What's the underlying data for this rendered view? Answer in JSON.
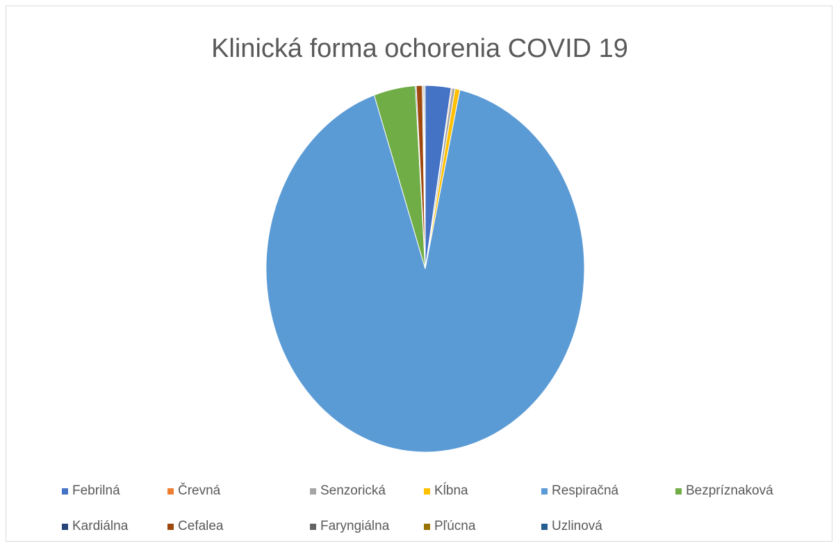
{
  "chart_data": {
    "type": "pie",
    "title": "Klinická forma ochorenia COVID 19",
    "legend_position": "bottom",
    "slices": [
      {
        "label": "Febrilná",
        "value": 2.6,
        "color": "#4472c4"
      },
      {
        "label": "Črevná",
        "value": 0.1,
        "color": "#ed7d31"
      },
      {
        "label": "Senzorická",
        "value": 0.3,
        "color": "#a5a5a5"
      },
      {
        "label": "Kĺbna",
        "value": 0.5,
        "color": "#ffc000"
      },
      {
        "label": "Respiračná",
        "value": 91.3,
        "color": "#5b9bd5"
      },
      {
        "label": "Bezpríznaková",
        "value": 4.2,
        "color": "#70ad47"
      },
      {
        "label": "Kardiálna",
        "value": 0.1,
        "color": "#264478"
      },
      {
        "label": "Cefalea",
        "value": 0.6,
        "color": "#9e480e"
      },
      {
        "label": "Faryngiálna",
        "value": 0.1,
        "color": "#636363"
      },
      {
        "label": "Pľúcna",
        "value": 0.1,
        "color": "#997300"
      },
      {
        "label": "Uzlinová",
        "value": 0.1,
        "color": "#255e91"
      }
    ]
  }
}
